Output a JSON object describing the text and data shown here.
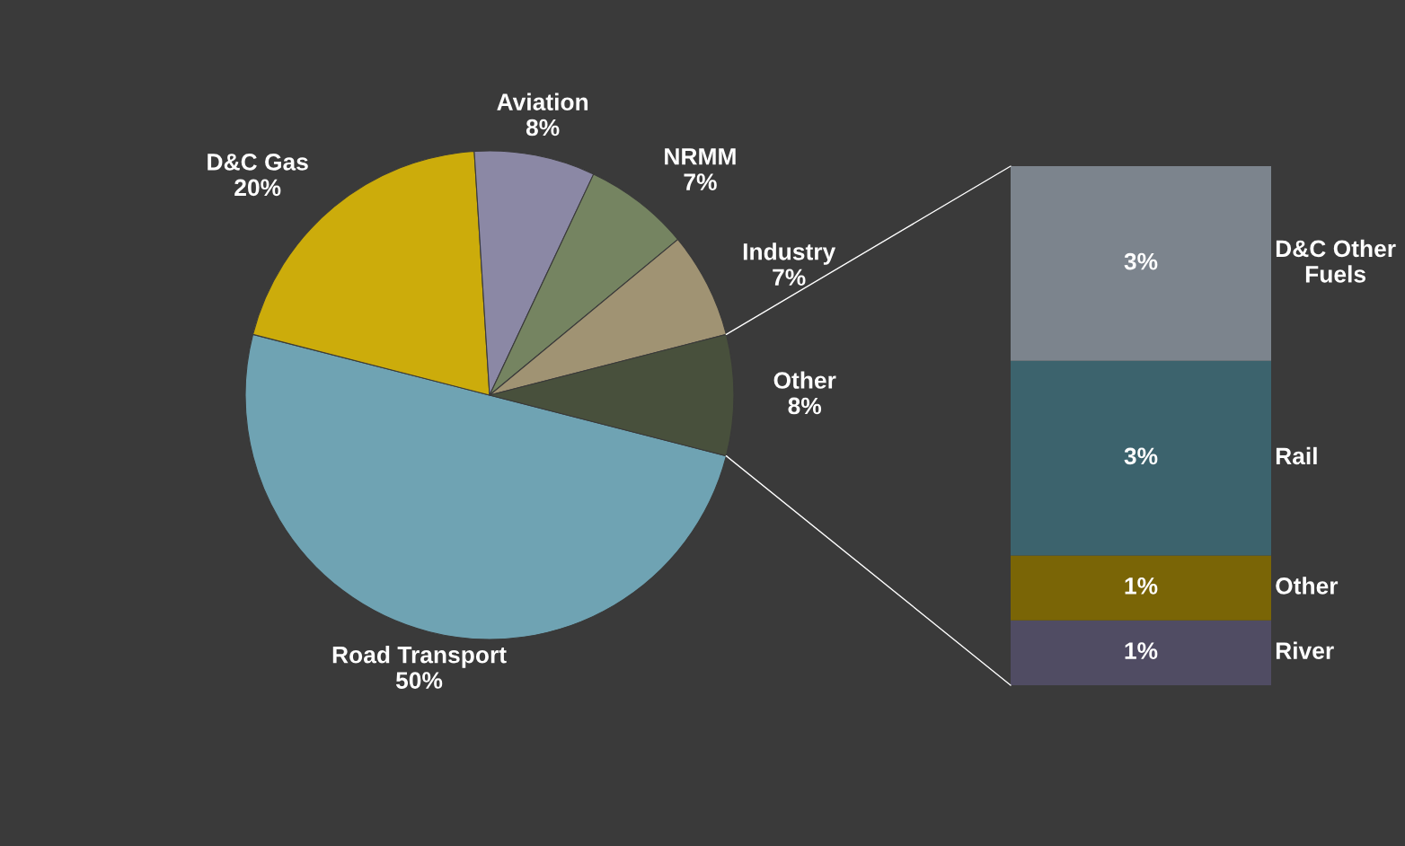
{
  "chart_data": [
    {
      "type": "pie",
      "categories": [
        "Road Transport",
        "D&C Gas",
        "Aviation",
        "NRMM",
        "Industry",
        "Other"
      ],
      "values": [
        50,
        20,
        8,
        7,
        7,
        8
      ],
      "value_labels": [
        "50%",
        "20%",
        "8%",
        "7%",
        "7%",
        "8%"
      ],
      "colors": [
        "#6fa3b3",
        "#ccac0b",
        "#8b88a5",
        "#758461",
        "#a09373",
        "#48503c"
      ]
    },
    {
      "type": "bar",
      "stacked": true,
      "categories": [
        null
      ],
      "series": [
        {
          "name": "River",
          "color": "#504c63",
          "values": [
            1
          ],
          "value_labels": [
            "1%"
          ]
        },
        {
          "name": "Other",
          "color": "#7a6506",
          "values": [
            1
          ],
          "value_labels": [
            "1%"
          ]
        },
        {
          "name": "Rail",
          "color": "#3c636d",
          "values": [
            3
          ],
          "value_labels": [
            "3%"
          ]
        },
        {
          "name": "D&C Other Fuels",
          "color": "#7c848d",
          "values": [
            3
          ],
          "value_labels": [
            "3%"
          ]
        }
      ]
    }
  ]
}
